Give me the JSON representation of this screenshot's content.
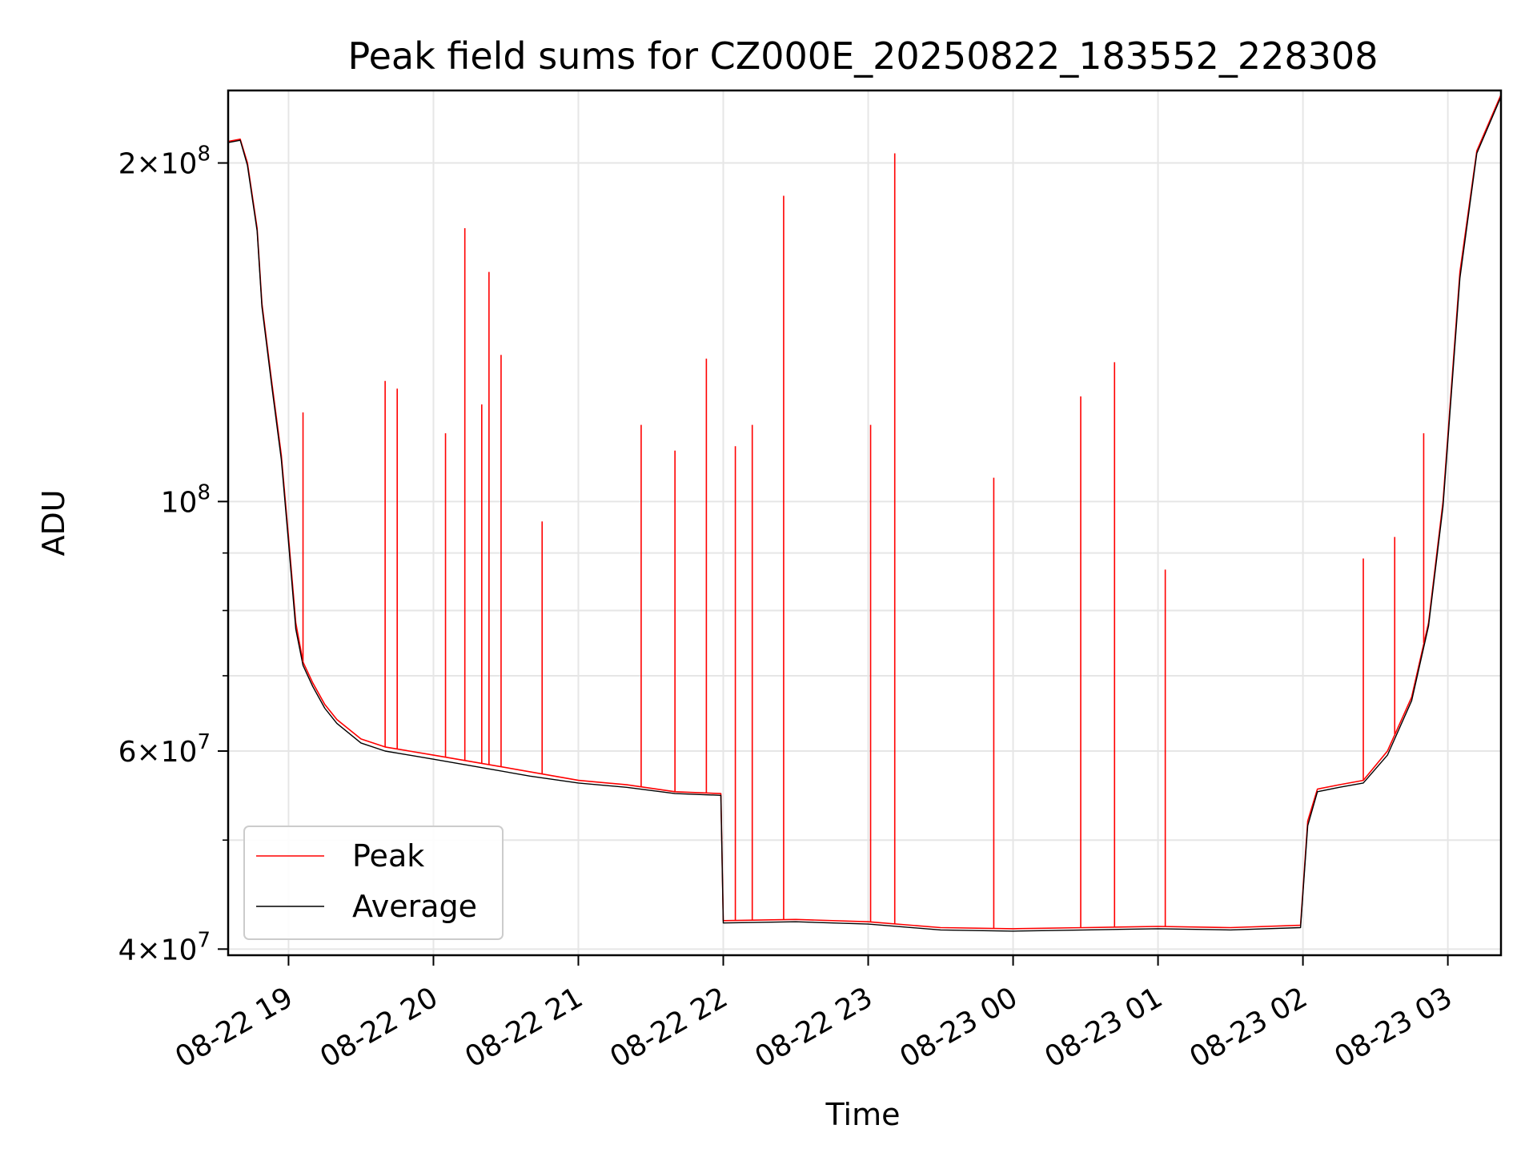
{
  "chart_data": {
    "type": "line",
    "title": "Peak field sums for CZ000E_20250822_183552_228308",
    "xlabel": "Time",
    "ylabel": "ADU",
    "y_scale": "log",
    "ylim": [
      39500000,
      232000000
    ],
    "xlim": [
      "2025-08-22 18:35",
      "2025-08-23 03:22"
    ],
    "grid": true,
    "legend_position": "lower-left",
    "x_ticks": [
      {
        "value": "2025-08-22 19:00",
        "label": "08-22 19"
      },
      {
        "value": "2025-08-22 20:00",
        "label": "08-22 20"
      },
      {
        "value": "2025-08-22 21:00",
        "label": "08-22 21"
      },
      {
        "value": "2025-08-22 22:00",
        "label": "08-22 22"
      },
      {
        "value": "2025-08-22 23:00",
        "label": "08-22 23"
      },
      {
        "value": "2025-08-23 00:00",
        "label": "08-23 00"
      },
      {
        "value": "2025-08-23 01:00",
        "label": "08-23 01"
      },
      {
        "value": "2025-08-23 02:00",
        "label": "08-23 02"
      },
      {
        "value": "2025-08-23 03:00",
        "label": "08-23 03"
      }
    ],
    "y_ticks": [
      {
        "value": 40000000,
        "base": "4",
        "mult": "×",
        "pow10": "10",
        "exp": "7"
      },
      {
        "value": 60000000,
        "base": "6",
        "mult": "×",
        "pow10": "10",
        "exp": "7"
      },
      {
        "value": 100000000,
        "base": "",
        "mult": "",
        "pow10": "10",
        "exp": "8"
      },
      {
        "value": 200000000,
        "base": "2",
        "mult": "×",
        "pow10": "10",
        "exp": "8"
      }
    ],
    "y_minor_ticks": [
      50000000,
      70000000,
      80000000,
      90000000,
      300000000
    ],
    "series": [
      {
        "name": "Peak",
        "color": "#ff0000",
        "x": [
          "2025-08-22 18:35",
          "2025-08-22 18:40",
          "2025-08-22 18:43",
          "2025-08-22 18:47",
          "2025-08-22 18:49",
          "2025-08-22 18:53",
          "2025-08-22 18:57",
          "2025-08-22 19:00",
          "2025-08-22 19:03",
          "2025-08-22 19:06",
          "2025-08-22 19:10",
          "2025-08-22 19:15",
          "2025-08-22 19:20",
          "2025-08-22 19:30",
          "2025-08-22 19:40",
          "2025-08-22 19:50",
          "2025-08-22 20:00",
          "2025-08-22 20:20",
          "2025-08-22 20:40",
          "2025-08-22 21:00",
          "2025-08-22 21:20",
          "2025-08-22 21:40",
          "2025-08-22 21:59",
          "2025-08-22 22:00",
          "2025-08-22 22:30",
          "2025-08-22 23:00",
          "2025-08-22 23:30",
          "2025-08-23 00:00",
          "2025-08-23 00:30",
          "2025-08-23 01:00",
          "2025-08-23 01:30",
          "2025-08-23 01:59",
          "2025-08-23 02:02",
          "2025-08-23 02:06",
          "2025-08-23 02:15",
          "2025-08-23 02:25",
          "2025-08-23 02:35",
          "2025-08-23 02:45",
          "2025-08-23 02:52",
          "2025-08-23 02:58",
          "2025-08-23 03:05",
          "2025-08-23 03:12",
          "2025-08-23 03:22"
        ],
        "values": [
          209000000,
          210000000,
          200000000,
          175000000,
          150000000,
          128000000,
          110000000,
          93000000,
          78000000,
          72000000,
          69000000,
          66000000,
          64000000,
          61500000,
          60500000,
          60000000,
          59500000,
          58500000,
          57500000,
          56500000,
          56000000,
          55200000,
          55000000,
          42400000,
          42500000,
          42300000,
          41800000,
          41700000,
          41800000,
          41900000,
          41800000,
          42000000,
          52000000,
          55500000,
          56000000,
          56500000,
          60000000,
          67000000,
          78000000,
          100000000,
          160000000,
          205000000,
          230000000
        ]
      },
      {
        "name": "Average",
        "color": "#000000",
        "x": [
          "2025-08-22 18:35",
          "2025-08-22 18:40",
          "2025-08-22 18:43",
          "2025-08-22 18:47",
          "2025-08-22 18:49",
          "2025-08-22 18:53",
          "2025-08-22 18:57",
          "2025-08-22 19:00",
          "2025-08-22 19:03",
          "2025-08-22 19:06",
          "2025-08-22 19:10",
          "2025-08-22 19:15",
          "2025-08-22 19:20",
          "2025-08-22 19:30",
          "2025-08-22 19:40",
          "2025-08-22 19:50",
          "2025-08-22 20:00",
          "2025-08-22 20:20",
          "2025-08-22 20:40",
          "2025-08-22 21:00",
          "2025-08-22 21:20",
          "2025-08-22 21:40",
          "2025-08-22 21:59",
          "2025-08-22 22:00",
          "2025-08-22 22:30",
          "2025-08-22 23:00",
          "2025-08-22 23:30",
          "2025-08-23 00:00",
          "2025-08-23 00:30",
          "2025-08-23 01:00",
          "2025-08-23 01:30",
          "2025-08-23 01:59",
          "2025-08-23 02:02",
          "2025-08-23 02:06",
          "2025-08-23 02:15",
          "2025-08-23 02:25",
          "2025-08-23 02:35",
          "2025-08-23 02:45",
          "2025-08-23 02:52",
          "2025-08-23 02:58",
          "2025-08-23 03:05",
          "2025-08-23 03:12",
          "2025-08-23 03:22"
        ],
        "values": [
          208500000,
          209500000,
          199000000,
          174000000,
          149000000,
          127000000,
          109000000,
          92000000,
          77000000,
          71500000,
          68500000,
          65500000,
          63500000,
          61000000,
          60000000,
          59500000,
          59000000,
          58000000,
          57000000,
          56200000,
          55700000,
          55000000,
          54800000,
          42200000,
          42300000,
          42100000,
          41600000,
          41500000,
          41600000,
          41700000,
          41600000,
          41800000,
          51500000,
          55200000,
          55700000,
          56200000,
          59500000,
          66500000,
          77500000,
          99000000,
          158000000,
          204000000,
          229000000
        ]
      }
    ],
    "spikes": [
      {
        "series": "Peak",
        "x": "2025-08-22 19:06",
        "value": 120000000
      },
      {
        "series": "Peak",
        "x": "2025-08-22 19:40",
        "value": 128000000
      },
      {
        "series": "Peak",
        "x": "2025-08-22 19:45",
        "value": 126000000
      },
      {
        "series": "Peak",
        "x": "2025-08-22 20:05",
        "value": 115000000
      },
      {
        "series": "Peak",
        "x": "2025-08-22 20:13",
        "value": 175000000
      },
      {
        "series": "Peak",
        "x": "2025-08-22 20:20",
        "value": 122000000
      },
      {
        "series": "Peak",
        "x": "2025-08-22 20:23",
        "value": 160000000
      },
      {
        "series": "Peak",
        "x": "2025-08-22 20:28",
        "value": 135000000
      },
      {
        "series": "Peak",
        "x": "2025-08-22 20:45",
        "value": 96000000
      },
      {
        "series": "Peak",
        "x": "2025-08-22 21:26",
        "value": 117000000
      },
      {
        "series": "Peak",
        "x": "2025-08-22 21:40",
        "value": 111000000
      },
      {
        "series": "Peak",
        "x": "2025-08-22 21:53",
        "value": 134000000
      },
      {
        "series": "Peak",
        "x": "2025-08-22 22:05",
        "value": 112000000
      },
      {
        "series": "Peak",
        "x": "2025-08-22 22:12",
        "value": 117000000
      },
      {
        "series": "Peak",
        "x": "2025-08-22 22:25",
        "value": 187000000
      },
      {
        "series": "Peak",
        "x": "2025-08-22 23:01",
        "value": 117000000
      },
      {
        "series": "Peak",
        "x": "2025-08-22 23:11",
        "value": 204000000
      },
      {
        "series": "Peak",
        "x": "2025-08-22 23:52",
        "value": 105000000
      },
      {
        "series": "Peak",
        "x": "2025-08-23 00:28",
        "value": 124000000
      },
      {
        "series": "Peak",
        "x": "2025-08-23 00:42",
        "value": 133000000
      },
      {
        "series": "Peak",
        "x": "2025-08-23 01:03",
        "value": 87000000
      },
      {
        "series": "Peak",
        "x": "2025-08-23 02:25",
        "value": 89000000
      },
      {
        "series": "Peak",
        "x": "2025-08-23 02:38",
        "value": 93000000
      },
      {
        "series": "Peak",
        "x": "2025-08-23 02:50",
        "value": 115000000
      }
    ]
  }
}
